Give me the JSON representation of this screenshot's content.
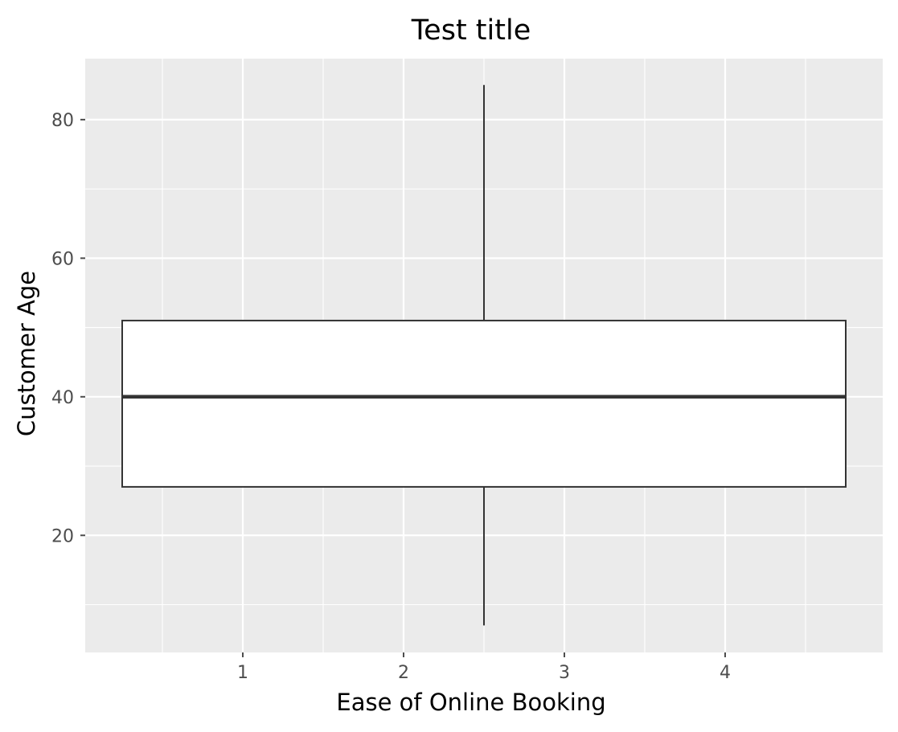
{
  "chart_data": {
    "type": "box",
    "title": "Test title",
    "xlabel": "Ease of Online Booking",
    "ylabel": "Customer Age",
    "xlim": [
      0.02,
      4.98
    ],
    "ylim": [
      3.1,
      88.8
    ],
    "xticks": [
      1,
      2,
      3,
      4
    ],
    "yticks": [
      20,
      40,
      60,
      80
    ],
    "x_minor_ticks": [
      0.5,
      1.5,
      2.5,
      3.5,
      4.5
    ],
    "y_minor_ticks": [
      10,
      30,
      50,
      70
    ],
    "grid": true,
    "box": {
      "x": 2.5,
      "x_start": 0.25,
      "x_end": 4.75,
      "whisker_low": 7,
      "q1": 27,
      "median": 40,
      "q3": 51,
      "whisker_high": 85
    },
    "colors": {
      "panel": "#ebebeb",
      "grid": "#ffffff",
      "box_fill": "#ffffff",
      "box_stroke": "#333333",
      "tick": "#4d4d4d"
    }
  }
}
